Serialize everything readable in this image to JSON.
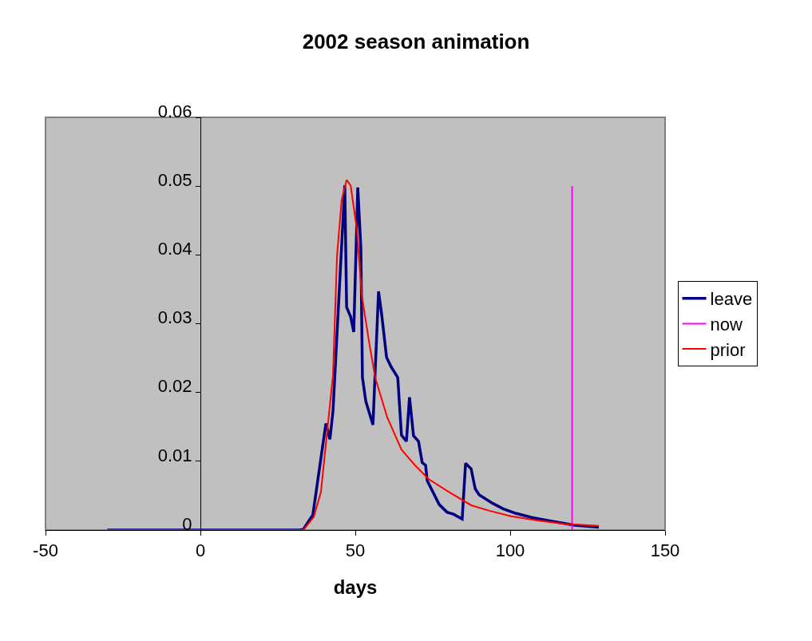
{
  "chart_data": {
    "type": "line",
    "title": "2002 season animation",
    "xlabel": "days",
    "xlim": [
      -50,
      150
    ],
    "xticks": [
      -50,
      0,
      50,
      100,
      150
    ],
    "ylim": [
      0,
      0.06
    ],
    "yticks": [
      0,
      0.01,
      0.02,
      0.03,
      0.04,
      0.05,
      0.06
    ],
    "grid": false,
    "legend": "right",
    "marker": "none",
    "line_style": "solid",
    "series": [
      {
        "name": "leave",
        "color": "#000080",
        "x": [
          -30,
          32,
          33.2,
          36.3,
          40.5,
          41.8,
          42.8,
          46.6,
          47.2,
          48.5,
          49.5,
          50.8,
          51.8,
          52.3,
          53.4,
          55.7,
          57.5,
          58.5,
          60.1,
          61.6,
          63.7,
          64.9,
          66.5,
          67.5,
          68.8,
          70.4,
          71.6,
          72.7,
          73.2,
          77.1,
          79.6,
          81.7,
          84.5,
          85.6,
          87.4,
          88.7,
          90,
          94.3,
          97.7,
          102,
          107.2,
          113.1,
          120.9,
          128.6
        ],
        "values": [
          0,
          0,
          0.0001,
          0.0022,
          0.0155,
          0.0132,
          0.0173,
          0.0501,
          0.0324,
          0.031,
          0.0288,
          0.0498,
          0.041,
          0.0222,
          0.0187,
          0.0153,
          0.0347,
          0.0314,
          0.0251,
          0.0237,
          0.0222,
          0.0138,
          0.0129,
          0.0193,
          0.0137,
          0.0129,
          0.0098,
          0.0094,
          0.0072,
          0.0037,
          0.0026,
          0.0023,
          0.0016,
          0.0097,
          0.0089,
          0.006,
          0.0051,
          0.0039,
          0.0031,
          0.0024,
          0.0018,
          0.0013,
          0.0007,
          0.0004
        ]
      },
      {
        "name": "now",
        "color": "#ff00ff",
        "x": [
          120,
          120
        ],
        "values": [
          0,
          0.05
        ]
      },
      {
        "name": "prior",
        "color": "#ff0000",
        "x": [
          -30,
          32,
          33.2,
          36.6,
          38.9,
          41,
          42.8,
          44.1,
          45.6,
          47.2,
          48.5,
          50.5,
          52.1,
          54.4,
          56.4,
          60.3,
          64.9,
          69.3,
          73.7,
          79.6,
          87.4,
          93.3,
          100.3,
          108.8,
          117.5,
          128.6
        ],
        "values": [
          0,
          0,
          0,
          0.0019,
          0.0055,
          0.0147,
          0.0225,
          0.0399,
          0.048,
          0.0509,
          0.0501,
          0.0437,
          0.0341,
          0.0275,
          0.0222,
          0.0164,
          0.0117,
          0.0094,
          0.0074,
          0.0057,
          0.0036,
          0.0028,
          0.002,
          0.0014,
          0.0009,
          0.0006
        ]
      }
    ]
  }
}
